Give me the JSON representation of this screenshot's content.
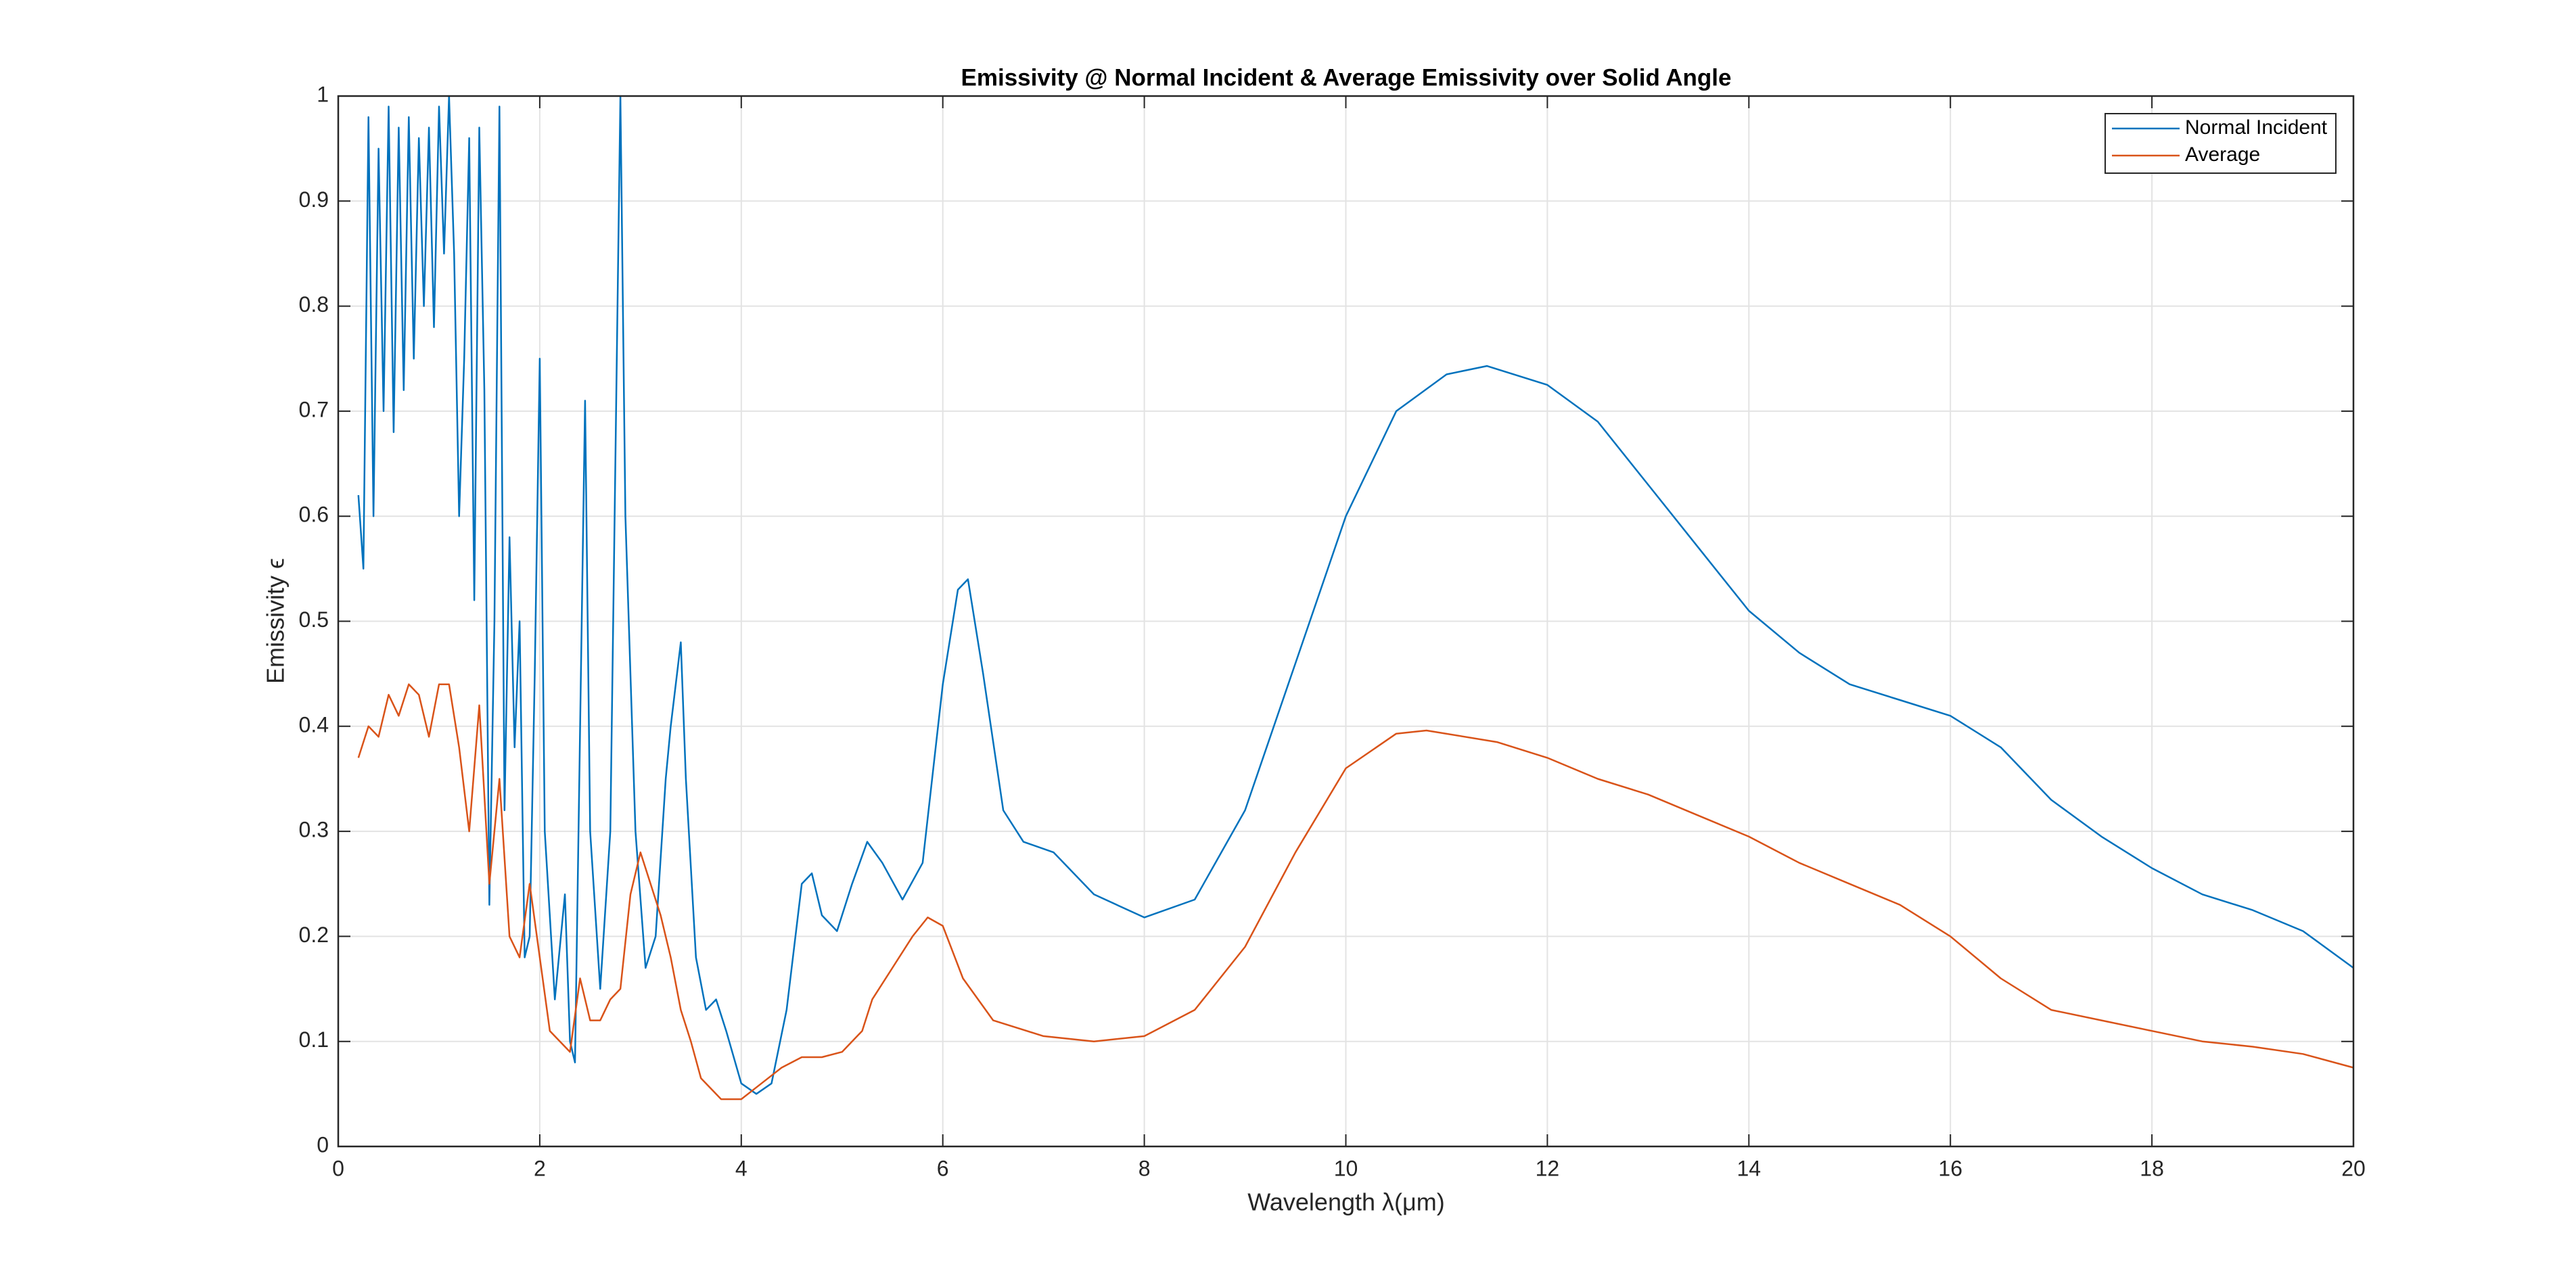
{
  "chart_data": {
    "type": "line",
    "title": "Emissivity @ Normal Incident & Average Emissivity over Solid Angle",
    "x_label": "Wavelength λ(μm)",
    "y_label": "Emissivity ϵ",
    "xlim": [
      0,
      20
    ],
    "xticks": [
      0,
      2,
      4,
      6,
      8,
      10,
      12,
      14,
      16,
      18,
      20
    ],
    "ylim": [
      0,
      1
    ],
    "yticks": [
      0,
      0.1,
      0.2,
      0.3,
      0.4,
      0.5,
      0.6,
      0.7,
      0.8,
      0.9,
      1
    ],
    "grid": true,
    "legend": "upper right",
    "series": [
      {
        "name": "Normal Incident",
        "color": "#0072bd",
        "x": [
          0.2,
          0.25,
          0.3,
          0.35,
          0.4,
          0.45,
          0.5,
          0.55,
          0.6,
          0.65,
          0.7,
          0.75,
          0.8,
          0.85,
          0.9,
          0.95,
          1.0,
          1.05,
          1.1,
          1.15,
          1.2,
          1.25,
          1.3,
          1.35,
          1.4,
          1.45,
          1.5,
          1.55,
          1.6,
          1.65,
          1.7,
          1.75,
          1.8,
          1.85,
          1.9,
          1.95,
          2.0,
          2.05,
          2.15,
          2.25,
          2.3,
          2.35,
          2.45,
          2.5,
          2.6,
          2.7,
          2.8,
          2.85,
          2.95,
          3.05,
          3.15,
          3.25,
          3.3,
          3.4,
          3.45,
          3.55,
          3.65,
          3.75,
          3.85,
          4.0,
          4.15,
          4.3,
          4.45,
          4.6,
          4.7,
          4.8,
          4.95,
          5.1,
          5.25,
          5.4,
          5.6,
          5.8,
          6.0,
          6.15,
          6.25,
          6.4,
          6.6,
          6.8,
          7.1,
          7.5,
          8.0,
          8.5,
          9.0,
          9.5,
          10.0,
          10.5,
          11.0,
          11.4,
          12.0,
          12.5,
          13.0,
          13.5,
          14.0,
          14.5,
          15.0,
          15.5,
          16.0,
          16.5,
          17.0,
          17.5,
          18.0,
          18.5,
          19.0,
          19.5,
          20.0
        ],
        "values": [
          0.62,
          0.55,
          0.98,
          0.6,
          0.95,
          0.7,
          0.99,
          0.68,
          0.97,
          0.72,
          0.98,
          0.75,
          0.96,
          0.8,
          0.97,
          0.78,
          0.99,
          0.85,
          1.0,
          0.85,
          0.6,
          0.75,
          0.96,
          0.52,
          0.97,
          0.72,
          0.23,
          0.5,
          0.99,
          0.32,
          0.58,
          0.38,
          0.5,
          0.18,
          0.2,
          0.45,
          0.75,
          0.3,
          0.14,
          0.24,
          0.1,
          0.08,
          0.71,
          0.3,
          0.15,
          0.3,
          1.0,
          0.6,
          0.3,
          0.17,
          0.2,
          0.35,
          0.4,
          0.48,
          0.35,
          0.18,
          0.13,
          0.14,
          0.11,
          0.06,
          0.05,
          0.06,
          0.13,
          0.25,
          0.26,
          0.22,
          0.205,
          0.25,
          0.29,
          0.27,
          0.235,
          0.27,
          0.44,
          0.53,
          0.54,
          0.45,
          0.32,
          0.29,
          0.28,
          0.24,
          0.218,
          0.235,
          0.32,
          0.46,
          0.6,
          0.7,
          0.735,
          0.743,
          0.725,
          0.69,
          0.63,
          0.57,
          0.51,
          0.47,
          0.44,
          0.425,
          0.41,
          0.38,
          0.33,
          0.295,
          0.265,
          0.24,
          0.225,
          0.205,
          0.17
        ]
      },
      {
        "name": "Average",
        "color": "#d95319",
        "x": [
          0.2,
          0.3,
          0.4,
          0.5,
          0.6,
          0.7,
          0.8,
          0.9,
          1.0,
          1.1,
          1.2,
          1.3,
          1.4,
          1.5,
          1.6,
          1.7,
          1.8,
          1.9,
          2.0,
          2.1,
          2.2,
          2.3,
          2.4,
          2.5,
          2.6,
          2.7,
          2.8,
          2.9,
          3.0,
          3.1,
          3.2,
          3.3,
          3.4,
          3.5,
          3.6,
          3.7,
          3.8,
          4.0,
          4.2,
          4.4,
          4.6,
          4.8,
          5.0,
          5.2,
          5.3,
          5.5,
          5.7,
          5.85,
          6.0,
          6.2,
          6.5,
          7.0,
          7.5,
          8.0,
          8.5,
          9.0,
          9.5,
          10.0,
          10.5,
          10.8,
          11.5,
          12.0,
          12.5,
          13.0,
          13.5,
          14.0,
          14.5,
          15.0,
          15.5,
          16.0,
          16.5,
          17.0,
          17.5,
          18.0,
          18.5,
          19.0,
          19.5,
          20.0
        ],
        "values": [
          0.37,
          0.4,
          0.39,
          0.43,
          0.41,
          0.44,
          0.43,
          0.39,
          0.44,
          0.44,
          0.38,
          0.3,
          0.42,
          0.25,
          0.35,
          0.2,
          0.18,
          0.25,
          0.18,
          0.11,
          0.1,
          0.09,
          0.16,
          0.12,
          0.12,
          0.14,
          0.15,
          0.24,
          0.28,
          0.25,
          0.22,
          0.18,
          0.13,
          0.1,
          0.065,
          0.055,
          0.045,
          0.045,
          0.06,
          0.075,
          0.085,
          0.085,
          0.09,
          0.11,
          0.14,
          0.17,
          0.2,
          0.218,
          0.21,
          0.16,
          0.12,
          0.105,
          0.1,
          0.105,
          0.13,
          0.19,
          0.28,
          0.36,
          0.393,
          0.396,
          0.385,
          0.37,
          0.35,
          0.335,
          0.315,
          0.295,
          0.27,
          0.25,
          0.23,
          0.2,
          0.16,
          0.13,
          0.12,
          0.11,
          0.1,
          0.095,
          0.088,
          0.075
        ]
      }
    ]
  }
}
